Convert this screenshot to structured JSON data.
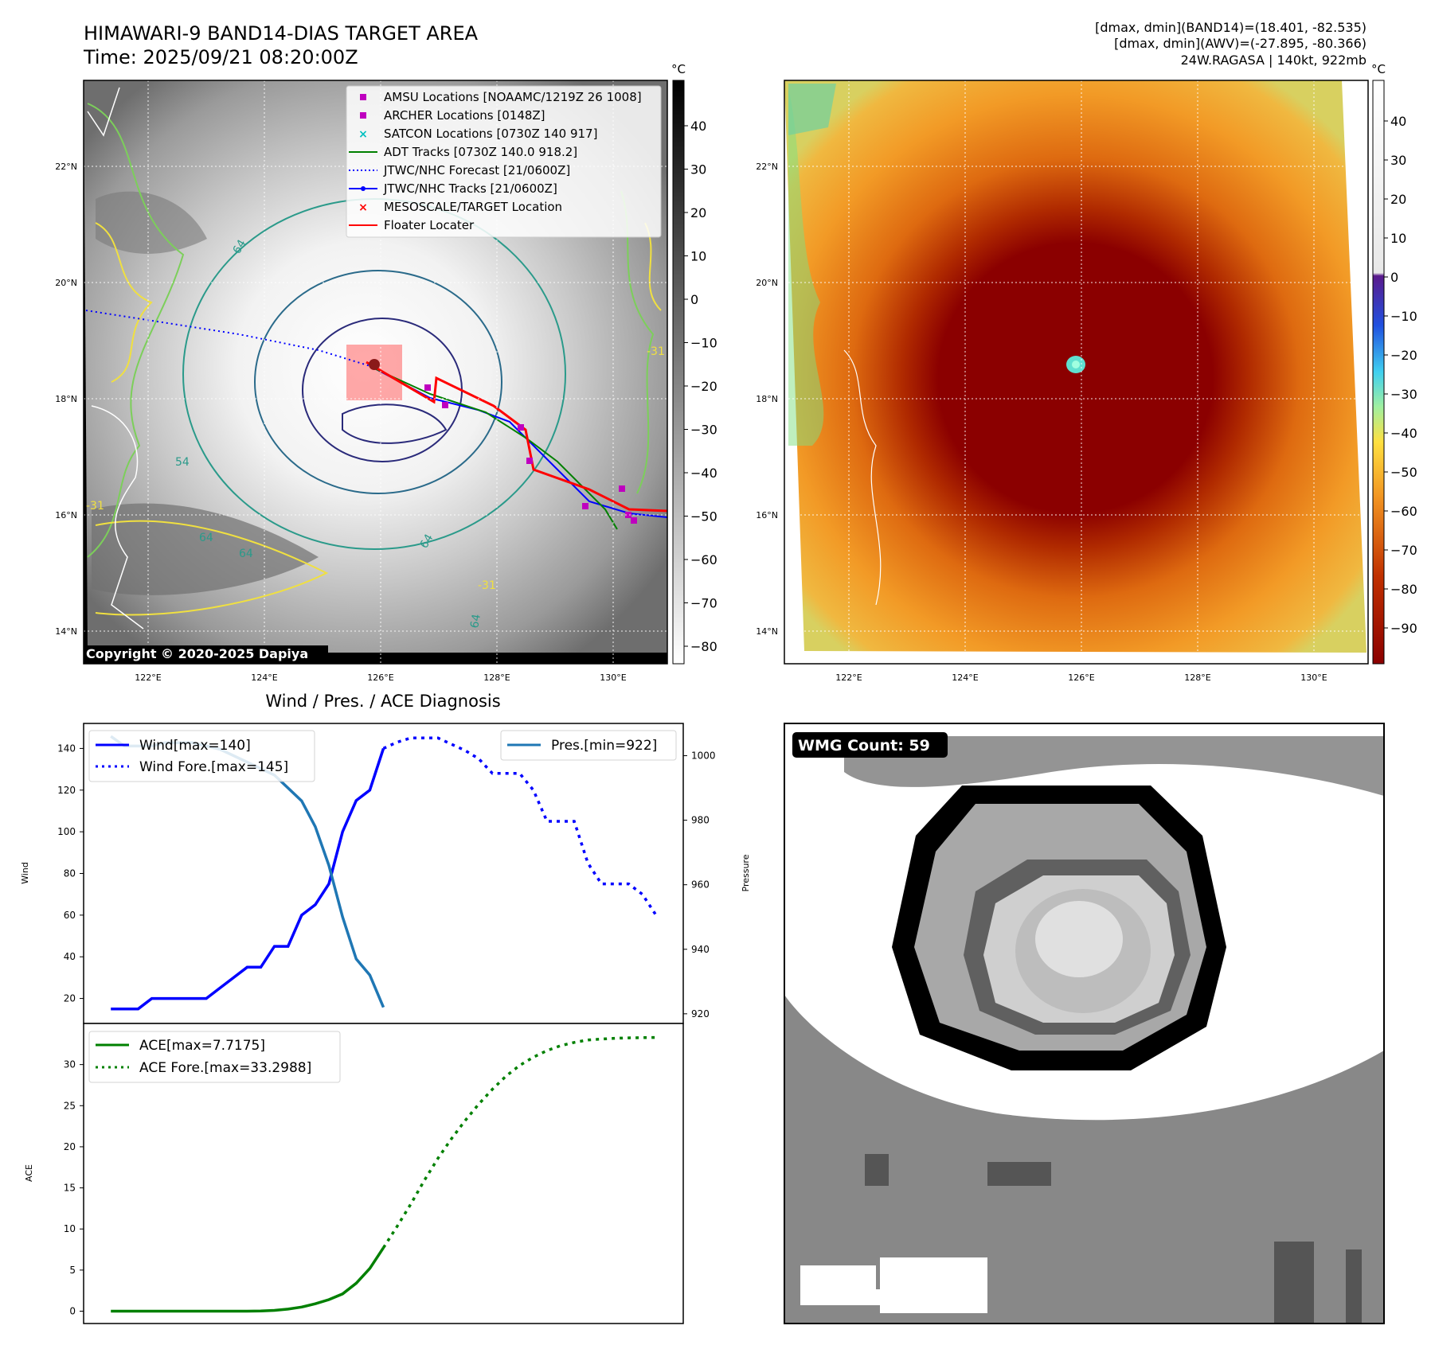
{
  "header": {
    "title_line1": "HIMAWARI-9 BAND14-DIAS TARGET AREA",
    "title_line2": "Time: 2025/09/21 08:20:00Z",
    "info_line1": "[dmax, dmin](BAND14)=(18.401, -82.535)",
    "info_line2": "[dmax, dmin](AWV)=(-27.895, -80.366)",
    "info_line3": "24W.RAGASA | 140kt, 922mb"
  },
  "map": {
    "lon_ticks": [
      "122°E",
      "124°E",
      "126°E",
      "128°E",
      "130°E"
    ],
    "lon_values": [
      122,
      124,
      126,
      128,
      130
    ],
    "lat_ticks": [
      "22°N",
      "20°N",
      "18°N",
      "16°N",
      "14°N"
    ],
    "lat_values": [
      22,
      20,
      18,
      16,
      14
    ],
    "colorbar_unit": "°C",
    "colorbar_ticks_left": [
      "40",
      "30",
      "20",
      "10",
      "0",
      "−10",
      "−20",
      "−30",
      "−40",
      "−50",
      "−60",
      "−70",
      "−80"
    ],
    "colorbar_ticks_right": [
      "40",
      "30",
      "20",
      "10",
      "0",
      "−10",
      "−20",
      "−30",
      "−40",
      "−50",
      "−60",
      "−70",
      "−80",
      "−90"
    ],
    "copyright": "Copyright © 2020-2025 Dapiya",
    "contour_labels": [
      "-31",
      "-31",
      "64",
      "64",
      "64",
      "54",
      "64",
      "64",
      "-31"
    ],
    "legend": [
      {
        "label": "AMSU Locations [NOAAMC/1219Z 26 1008]",
        "marker": "square",
        "color": "#bf00bf"
      },
      {
        "label": "ARCHER Locations [0148Z]",
        "marker": "square",
        "color": "#bf00bf"
      },
      {
        "label": "SATCON Locations [0730Z 140 917]",
        "marker": "x",
        "color": "#00bfbf"
      },
      {
        "label": "ADT Tracks [0730Z 140.0 918.2]",
        "marker": "line",
        "color": "#008000"
      },
      {
        "label": "JTWC/NHC Forecast [21/0600Z]",
        "marker": "dotted",
        "color": "#0000ff"
      },
      {
        "label": "JTWC/NHC Tracks [21/0600Z]",
        "marker": "line-dot",
        "color": "#0000ff"
      },
      {
        "label": "MESOSCALE/TARGET Location",
        "marker": "x",
        "color": "#ff0000"
      },
      {
        "label": "Floater Locater",
        "marker": "line",
        "color": "#ff0000"
      }
    ]
  },
  "wmg": {
    "label": "WMG Count: 59"
  },
  "chart_data": [
    {
      "type": "line",
      "title": "Wind / Pres. / ACE Diagnosis",
      "ylabel": "Wind",
      "ylabel_right": "Pressure",
      "ylim": [
        8,
        152
      ],
      "ylim_right": [
        917,
        1010
      ],
      "yticks": [
        20,
        40,
        60,
        80,
        100,
        120,
        140
      ],
      "yticks_right": [
        920,
        940,
        960,
        980,
        1000
      ],
      "x": [
        0,
        1,
        2,
        3,
        4,
        5,
        6,
        7,
        8,
        9,
        10,
        11,
        12,
        13,
        14,
        15,
        16,
        17,
        18,
        19,
        20,
        21,
        22,
        23,
        24,
        25,
        26,
        27,
        28,
        29,
        30,
        31,
        32,
        33,
        34,
        35,
        36,
        37,
        38,
        39,
        40
      ],
      "series": [
        {
          "name": "Wind[max=140]",
          "color": "#0000ff",
          "style": "solid",
          "x": [
            0,
            2,
            3,
            4,
            5,
            6,
            7,
            8,
            9,
            10,
            11,
            12,
            13,
            14,
            15,
            16,
            17,
            18,
            19,
            20
          ],
          "values": [
            15,
            15,
            20,
            20,
            20,
            20,
            20,
            25,
            30,
            35,
            35,
            45,
            45,
            60,
            65,
            75,
            100,
            115,
            120,
            140
          ]
        },
        {
          "name": "Wind Fore.[max=145]",
          "color": "#0000ff",
          "style": "dotted",
          "x": [
            20,
            21,
            22,
            23,
            24,
            25,
            26,
            27,
            28,
            29,
            30,
            31,
            32,
            33,
            34,
            35,
            36,
            37,
            38,
            39,
            40
          ],
          "values": [
            140,
            143,
            145,
            145,
            145,
            142,
            139,
            135,
            128,
            128,
            128,
            120,
            105,
            105,
            105,
            85,
            75,
            75,
            75,
            70,
            60
          ]
        },
        {
          "name": "Pres.[min=922]",
          "color": "#1f77b4",
          "style": "solid",
          "axis": "right",
          "x": [
            0,
            1,
            3,
            4,
            6,
            8,
            10,
            12,
            14,
            15,
            16,
            17,
            18,
            19,
            20
          ],
          "values": [
            1006,
            1003,
            1003,
            1004,
            1004,
            1002,
            998,
            994,
            986,
            978,
            966,
            950,
            937,
            932,
            922
          ]
        }
      ]
    },
    {
      "type": "line",
      "ylabel": "ACE",
      "ylim": [
        -1.5,
        35
      ],
      "yticks": [
        0,
        5,
        10,
        15,
        20,
        25,
        30
      ],
      "x": [
        0,
        1,
        2,
        3,
        4,
        5,
        6,
        7,
        8,
        9,
        10,
        11,
        12,
        13,
        14,
        15,
        16,
        17,
        18,
        19,
        20,
        21,
        22,
        23,
        24,
        25,
        26,
        27,
        28,
        29,
        30,
        31,
        32,
        33,
        34,
        35,
        36,
        37,
        38,
        39,
        40
      ],
      "series": [
        {
          "name": "ACE[max=7.7175]",
          "color": "#008000",
          "style": "solid",
          "x": [
            0,
            2,
            4,
            6,
            8,
            10,
            11,
            12,
            13,
            14,
            15,
            16,
            17,
            18,
            19,
            20
          ],
          "values": [
            0,
            0,
            0,
            0,
            0,
            0,
            0.02,
            0.1,
            0.25,
            0.5,
            0.9,
            1.4,
            2.1,
            3.4,
            5.2,
            7.7175
          ]
        },
        {
          "name": "ACE Fore.[max=33.2988]",
          "color": "#008000",
          "style": "dotted",
          "x": [
            20,
            21,
            22,
            23,
            24,
            25,
            26,
            27,
            28,
            29,
            30,
            31,
            32,
            33,
            34,
            35,
            36,
            37,
            38,
            39,
            40
          ],
          "values": [
            7.7175,
            10.3,
            13.0,
            15.9,
            18.6,
            21.0,
            23.2,
            25.2,
            27.0,
            28.6,
            29.9,
            30.9,
            31.7,
            32.3,
            32.7,
            33.0,
            33.1,
            33.2,
            33.25,
            33.28,
            33.2988
          ]
        }
      ]
    }
  ]
}
